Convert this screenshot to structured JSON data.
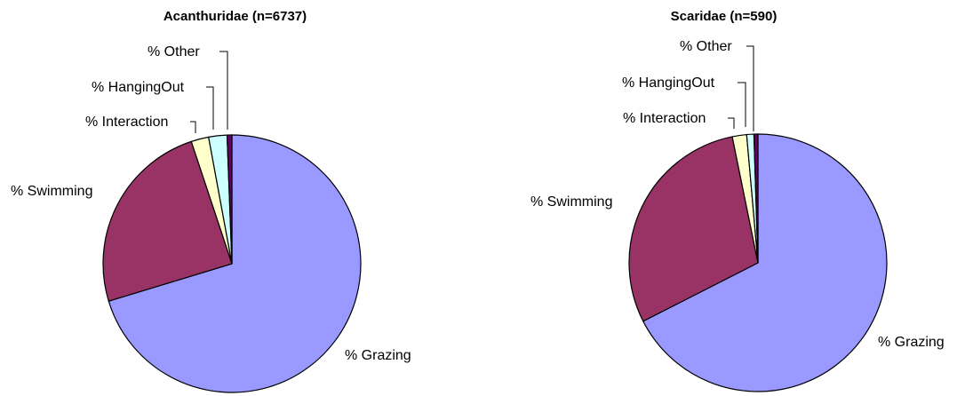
{
  "chart_data": [
    {
      "type": "pie",
      "title": "Acanthuridae (n=6737)",
      "slices": [
        {
          "label": "% Grazing",
          "value": 70.3,
          "color": "#9999FF"
        },
        {
          "label": "% Swimming",
          "value": 24.6,
          "color": "#993366"
        },
        {
          "label": "% Interaction",
          "value": 2.2,
          "color": "#FFFFCC"
        },
        {
          "label": "% HangingOut",
          "value": 2.3,
          "color": "#CCFFFF"
        },
        {
          "label": "% Other",
          "value": 0.6,
          "color": "#660066"
        }
      ],
      "start_angle_deg": 0,
      "direction": "clockwise",
      "legend": "none",
      "data_labels": "category names outside slices"
    },
    {
      "type": "pie",
      "title": "Scaridae (n=590)",
      "slices": [
        {
          "label": "% Grazing",
          "value": 67.5,
          "color": "#9999FF"
        },
        {
          "label": "% Swimming",
          "value": 29.3,
          "color": "#993366"
        },
        {
          "label": "% Interaction",
          "value": 1.8,
          "color": "#FFFFCC"
        },
        {
          "label": "% HangingOut",
          "value": 0.9,
          "color": "#CCFFFF"
        },
        {
          "label": "% Other",
          "value": 0.5,
          "color": "#660066"
        }
      ],
      "start_angle_deg": 0,
      "direction": "clockwise",
      "legend": "none",
      "data_labels": "category names outside slices"
    }
  ]
}
